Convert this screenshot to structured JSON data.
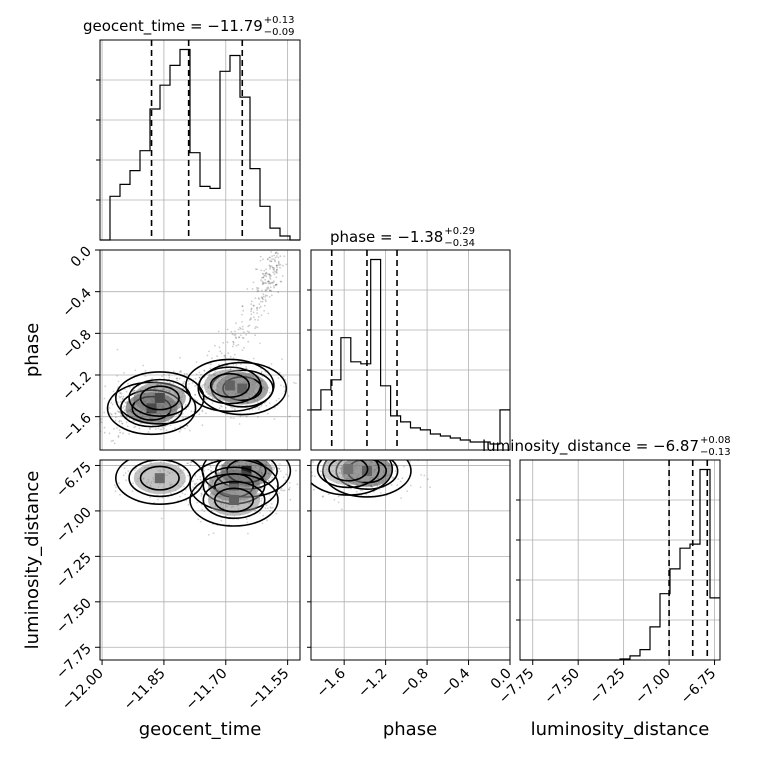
{
  "chart_data": {
    "type": "corner",
    "parameters": [
      "geocent_time",
      "phase",
      "luminosity_distance"
    ],
    "grid": true,
    "titles": [
      {
        "param": "geocent_time",
        "main": "geocent_time = −11.79",
        "sup": "+0.13",
        "sub": "−0.09"
      },
      {
        "param": "phase",
        "main": "phase = −1.38",
        "sup": "+0.29",
        "sub": "−0.34"
      },
      {
        "param": "luminosity_distance",
        "main": "luminosity_distance = −6.87",
        "sup": "+0.08",
        "sub": "−0.13"
      }
    ],
    "axis_labels": {
      "x": [
        "geocent_time",
        "phase",
        "luminosity_distance"
      ],
      "y": [
        "phase",
        "luminosity_distance"
      ]
    },
    "ranges": {
      "geocent_time": [
        -12.005,
        -11.52
      ],
      "phase": [
        -1.92,
        0.0
      ],
      "luminosity_distance": [
        -7.82,
        -6.72
      ]
    },
    "ticks": {
      "geocent_time": {
        "values": [
          -12.0,
          -11.85,
          -11.7,
          -11.55
        ],
        "labels": [
          "−12.00",
          "−11.85",
          "−11.70",
          "−11.55"
        ]
      },
      "phase": {
        "values": [
          -1.6,
          -1.2,
          -0.8,
          -0.4,
          0.0
        ],
        "labels": [
          "−1.6",
          "−1.2",
          "−0.8",
          "−0.4",
          "0.0"
        ]
      },
      "luminosity_distance": {
        "values": [
          -7.75,
          -7.5,
          -7.25,
          -7.0,
          -6.75
        ],
        "labels": [
          "−7.75",
          "−7.50",
          "−7.25",
          "−7.00",
          "−6.75"
        ]
      }
    },
    "histograms": [
      {
        "param": "geocent_time",
        "bin_edges": [
          -12.005,
          -11.9808,
          -11.9565,
          -11.9322,
          -11.908,
          -11.8838,
          -11.8595,
          -11.8352,
          -11.811,
          -11.7868,
          -11.7625,
          -11.7382,
          -11.714,
          -11.6898,
          -11.6655,
          -11.6412,
          -11.617,
          -11.5927,
          -11.5685,
          -11.5442,
          -11.52
        ],
        "counts": [
          0,
          0.22,
          0.28,
          0.35,
          0.45,
          0.66,
          0.78,
          0.88,
          0.96,
          0.44,
          0.27,
          0.26,
          0.85,
          0.93,
          0.72,
          0.36,
          0.17,
          0.06,
          0.02,
          0
        ],
        "quantiles": [
          -11.88,
          -11.79,
          -11.66
        ]
      },
      {
        "param": "phase",
        "bin_edges": [
          -1.92,
          -1.824,
          -1.728,
          -1.632,
          -1.536,
          -1.44,
          -1.344,
          -1.248,
          -1.152,
          -1.056,
          -0.96,
          -0.864,
          -0.768,
          -0.672,
          -0.576,
          -0.48,
          -0.384,
          -0.288,
          -0.192,
          -0.096,
          0.0
        ],
        "counts": [
          0.2,
          0.3,
          0.35,
          0.56,
          0.44,
          0.43,
          0.95,
          0.32,
          0.17,
          0.14,
          0.11,
          0.1,
          0.08,
          0.07,
          0.06,
          0.05,
          0.04,
          0.04,
          0.03,
          0.2
        ],
        "quantiles": [
          -1.72,
          -1.38,
          -1.09
        ]
      },
      {
        "param": "luminosity_distance",
        "bin_edges": [
          -7.82,
          -7.765,
          -7.71,
          -7.655,
          -7.6,
          -7.545,
          -7.49,
          -7.435,
          -7.38,
          -7.325,
          -7.27,
          -7.215,
          -7.16,
          -7.105,
          -7.05,
          -6.995,
          -6.94,
          -6.885,
          -6.83,
          -6.775,
          -6.72
        ],
        "counts": [
          0,
          0,
          0,
          0,
          0,
          0,
          0,
          0,
          0,
          0,
          0.005,
          0.02,
          0.05,
          0.16,
          0.32,
          0.44,
          0.54,
          0.56,
          0.92,
          0.3
        ],
        "quantiles": [
          -7.0,
          -6.87,
          -6.79
        ]
      }
    ],
    "joint_2d": [
      {
        "x": "geocent_time",
        "y": "phase",
        "density_peaks": [
          {
            "x": -11.88,
            "y": -1.52,
            "value": 1.0
          },
          {
            "x": -11.86,
            "y": -1.42,
            "value": 0.75
          },
          {
            "x": -11.66,
            "y": -1.33,
            "value": 0.9
          },
          {
            "x": -11.69,
            "y": -1.3,
            "value": 0.6
          }
        ],
        "sample_trends": [
          {
            "from": [
              -11.99,
              -1.75
            ],
            "to": [
              -11.8,
              -1.2
            ]
          },
          {
            "from": [
              -11.75,
              -1.35
            ],
            "to": [
              -11.6,
              -0.4
            ]
          },
          {
            "from": [
              -11.6,
              -0.4
            ],
            "to": [
              -11.58,
              0.0
            ]
          }
        ]
      },
      {
        "x": "geocent_time",
        "y": "luminosity_distance",
        "density_peaks": [
          {
            "x": -11.65,
            "y": -6.78,
            "value": 1.0
          },
          {
            "x": -11.68,
            "y": -6.86,
            "value": 0.8
          },
          {
            "x": -11.68,
            "y": -6.94,
            "value": 0.6
          },
          {
            "x": -11.86,
            "y": -6.82,
            "value": 0.55
          }
        ]
      },
      {
        "x": "phase",
        "y": "luminosity_distance",
        "density_peaks": [
          {
            "x": -1.38,
            "y": -6.78,
            "value": 1.0
          },
          {
            "x": -1.56,
            "y": -6.77,
            "value": 0.5
          }
        ]
      }
    ]
  }
}
